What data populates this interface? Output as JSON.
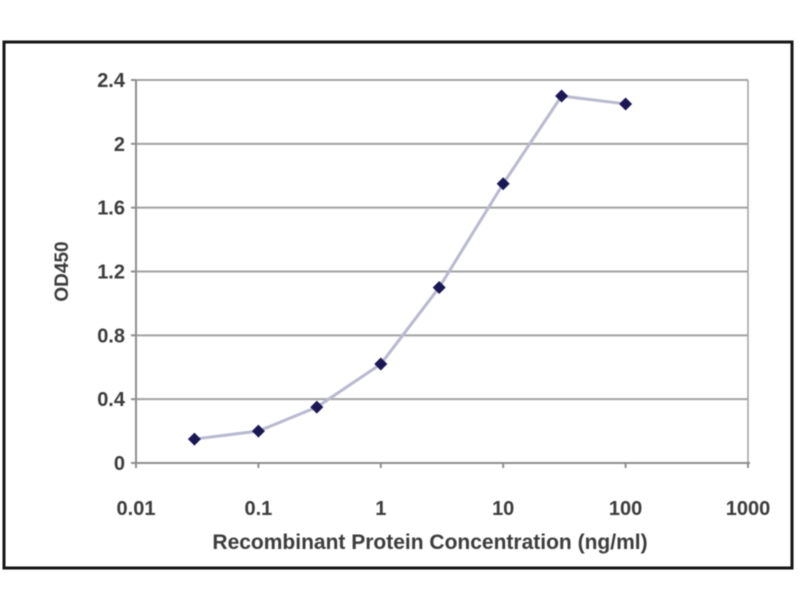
{
  "figure": {
    "background_color": "#ffffff",
    "frame_border_color": "#161616"
  },
  "chart_data": {
    "type": "line",
    "title": "",
    "xlabel": "Recombinant Protein Concentration (ng/ml)",
    "ylabel": "OD450",
    "x_scale": "log10",
    "xlim": [
      0.01,
      1000
    ],
    "ylim": [
      0,
      2.4
    ],
    "x_tick_values": [
      0.01,
      0.1,
      1,
      10,
      100,
      1000
    ],
    "x_tick_labels": [
      "0.01",
      "0.1",
      "1",
      "10",
      "100",
      "1000"
    ],
    "y_tick_values": [
      0,
      0.4,
      0.8,
      1.2,
      1.6,
      2,
      2.4
    ],
    "y_tick_labels": [
      "0",
      "0.4",
      "0.8",
      "1.2",
      "1.6",
      "2",
      "2.4"
    ],
    "grid": "horizontal-major-only",
    "legend": "none",
    "series": [
      {
        "name": "OD450",
        "x": [
          0.03,
          0.1,
          0.3,
          1,
          3,
          10,
          30,
          100
        ],
        "y": [
          0.15,
          0.2,
          0.35,
          0.62,
          1.1,
          1.75,
          2.3,
          2.25
        ],
        "marker": "diamond",
        "marker_color": "#1b1754",
        "line_color": "#b9b9d0"
      }
    ],
    "colors": {
      "gridline": "#a2a2a2",
      "axis_line": "#8e8e8e",
      "tick_text": "#3c3c3c",
      "plot_background": "#ffffff"
    }
  }
}
